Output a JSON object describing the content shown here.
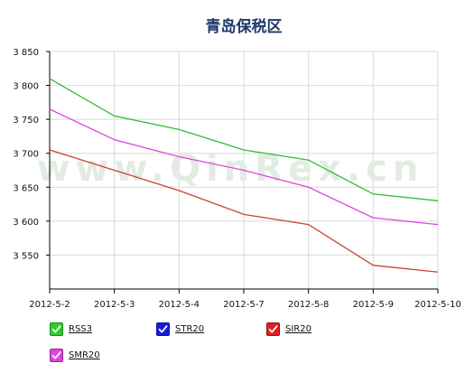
{
  "chart_data": {
    "type": "line",
    "title": "青岛保税区",
    "watermark": "www.QinRex.cn",
    "categories": [
      "2012-5-2",
      "2012-5-3",
      "2012-5-4",
      "2012-5-7",
      "2012-5-8",
      "2012-5-9",
      "2012-5-10"
    ],
    "series": [
      {
        "name": "RSS3",
        "color": "#33bb33",
        "values": [
          3810,
          3755,
          3735,
          3705,
          3690,
          3640,
          3630
        ]
      },
      {
        "name": "SMR20",
        "color": "#dd44dd",
        "values": [
          3765,
          3720,
          3695,
          3675,
          3650,
          3605,
          3595
        ]
      },
      {
        "name": "SIR20",
        "color": "#c84430",
        "values": [
          3705,
          3675,
          3645,
          3610,
          3595,
          3535,
          3525
        ]
      }
    ],
    "legend": [
      {
        "name": "RSS3",
        "color": "#2ecc2e"
      },
      {
        "name": "STR20",
        "color": "#1a1adc"
      },
      {
        "name": "SIR20",
        "color": "#e02020"
      },
      {
        "name": "SMR20",
        "color": "#dd44dd"
      }
    ],
    "ylim": [
      3500,
      3850
    ],
    "yticks": [
      3550,
      3600,
      3650,
      3700,
      3750,
      3800,
      3850
    ],
    "ytick_labels": [
      "3 550",
      "3 600",
      "3 650",
      "3 700",
      "3 750",
      "3 800",
      "3 850"
    ],
    "grid": true,
    "legend_placement": "bottom-left"
  }
}
